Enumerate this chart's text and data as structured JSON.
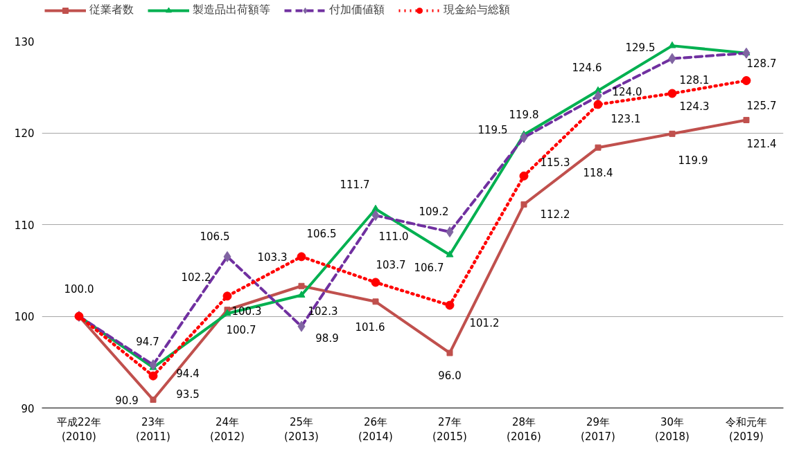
{
  "chart_data": {
    "type": "line",
    "categories": [
      "平成22年\n(2010)",
      "23年\n(2011)",
      "24年\n(2012)",
      "25年\n(2013)",
      "26年\n(2014)",
      "27年\n(2015)",
      "28年\n(2016)",
      "29年\n(2017)",
      "30年\n(2018)",
      "令和元年\n(2019)"
    ],
    "series": [
      {
        "name": "従業者数",
        "color": "#c0504d",
        "marker": "square",
        "line_style": "solid",
        "values": [
          100.0,
          90.9,
          100.7,
          103.3,
          101.6,
          96.0,
          112.2,
          118.4,
          119.9,
          121.4
        ],
        "value_labels": [
          null,
          "90.9",
          "100.7",
          "103.3",
          "101.6",
          "96.0",
          "112.2",
          "118.4",
          "119.9",
          "121.4"
        ]
      },
      {
        "name": "製造品出荷額等",
        "color": "#00b050",
        "marker": "triangle",
        "line_style": "solid",
        "values": [
          100.0,
          94.4,
          100.3,
          102.3,
          111.7,
          106.7,
          119.8,
          124.6,
          129.5,
          128.7
        ],
        "value_labels": [
          null,
          "94.4",
          "100.3",
          "102.3",
          "111.7",
          "106.7",
          "119.8",
          "124.6",
          "129.5",
          "128.7"
        ]
      },
      {
        "name": "付加価値額",
        "color": "#7030a0",
        "marker": "diamond",
        "line_style": "dashed",
        "values": [
          100.0,
          94.7,
          106.5,
          98.9,
          111.0,
          109.2,
          119.5,
          124.0,
          128.1,
          128.7
        ],
        "value_labels": [
          "100.0",
          "94.7",
          "106.5",
          "98.9",
          "111.0",
          "109.2",
          "119.5",
          "124.0",
          "128.1",
          null
        ]
      },
      {
        "name": "現金給与総額",
        "color": "#ff0000",
        "marker": "circle",
        "line_style": "dotted",
        "values": [
          100.0,
          93.5,
          102.2,
          106.5,
          103.7,
          101.2,
          115.3,
          123.1,
          124.3,
          125.7
        ],
        "value_labels": [
          null,
          "93.5",
          "102.2",
          "106.5",
          "103.7",
          "101.2",
          "115.3",
          "123.1",
          "124.3",
          "125.7"
        ]
      }
    ],
    "ylim": [
      90,
      130
    ],
    "yticks": [
      90,
      100,
      110,
      120,
      130
    ],
    "grid": "y",
    "legend": "top"
  }
}
